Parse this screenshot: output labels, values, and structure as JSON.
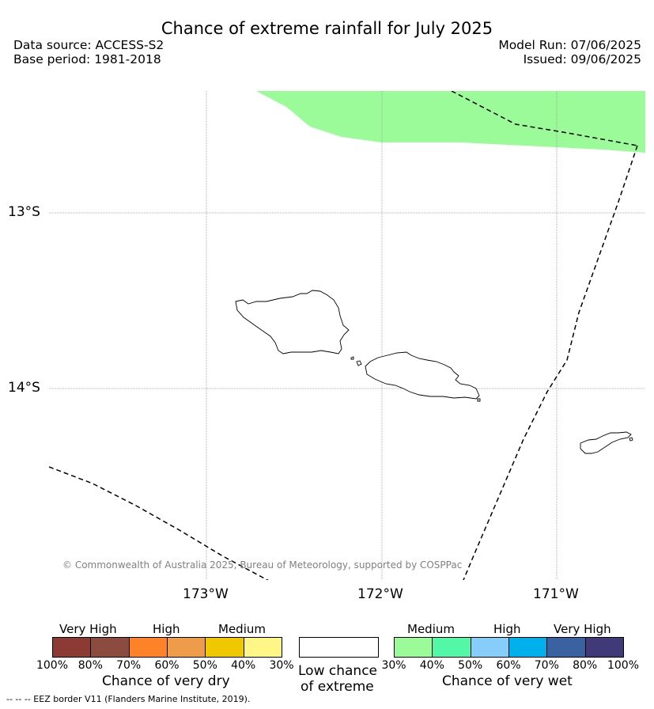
{
  "header": {
    "title": "Chance of extreme rainfall for July 2025",
    "data_source": "Data source: ACCESS-S2",
    "base_period": "Base period: 1981-2018",
    "model_run": "Model Run: 07/06/2025",
    "issued": "Issued: 09/06/2025"
  },
  "map": {
    "lat_labels": [
      "13°S",
      "14°S"
    ],
    "lon_labels": [
      "173°W",
      "172°W",
      "171°W"
    ],
    "copyright": "© Commonwealth of Australia 2025, Bureau of Meteorology, supported by COSPPac",
    "wet_fill_color": "#9afb98",
    "wet_fill_category": "30%-40%"
  },
  "legend": {
    "dry": {
      "categories": [
        "Very High",
        "High",
        "Medium"
      ],
      "ticks": [
        "100%",
        "80%",
        "70%",
        "60%",
        "50%",
        "40%",
        "30%"
      ],
      "colors": [
        "#8b3a34",
        "#8b4c3f",
        "#fd8228",
        "#ee9b4a",
        "#f0c800",
        "#fef787"
      ],
      "name": "Chance of very dry"
    },
    "low": {
      "name_line1": "Low chance",
      "name_line2": "of extreme",
      "color": "#ffffff"
    },
    "wet": {
      "categories": [
        "Medium",
        "High",
        "Very High"
      ],
      "ticks": [
        "30%",
        "40%",
        "50%",
        "60%",
        "70%",
        "80%",
        "100%"
      ],
      "colors": [
        "#9afb98",
        "#53f8a6",
        "#86cdf9",
        "#00b0eb",
        "#3a62a0",
        "#413a79"
      ],
      "name": "Chance of very wet"
    }
  },
  "footnote": "--  --  -- EEZ border V11 (Flanders Marine Institute, 2019)."
}
